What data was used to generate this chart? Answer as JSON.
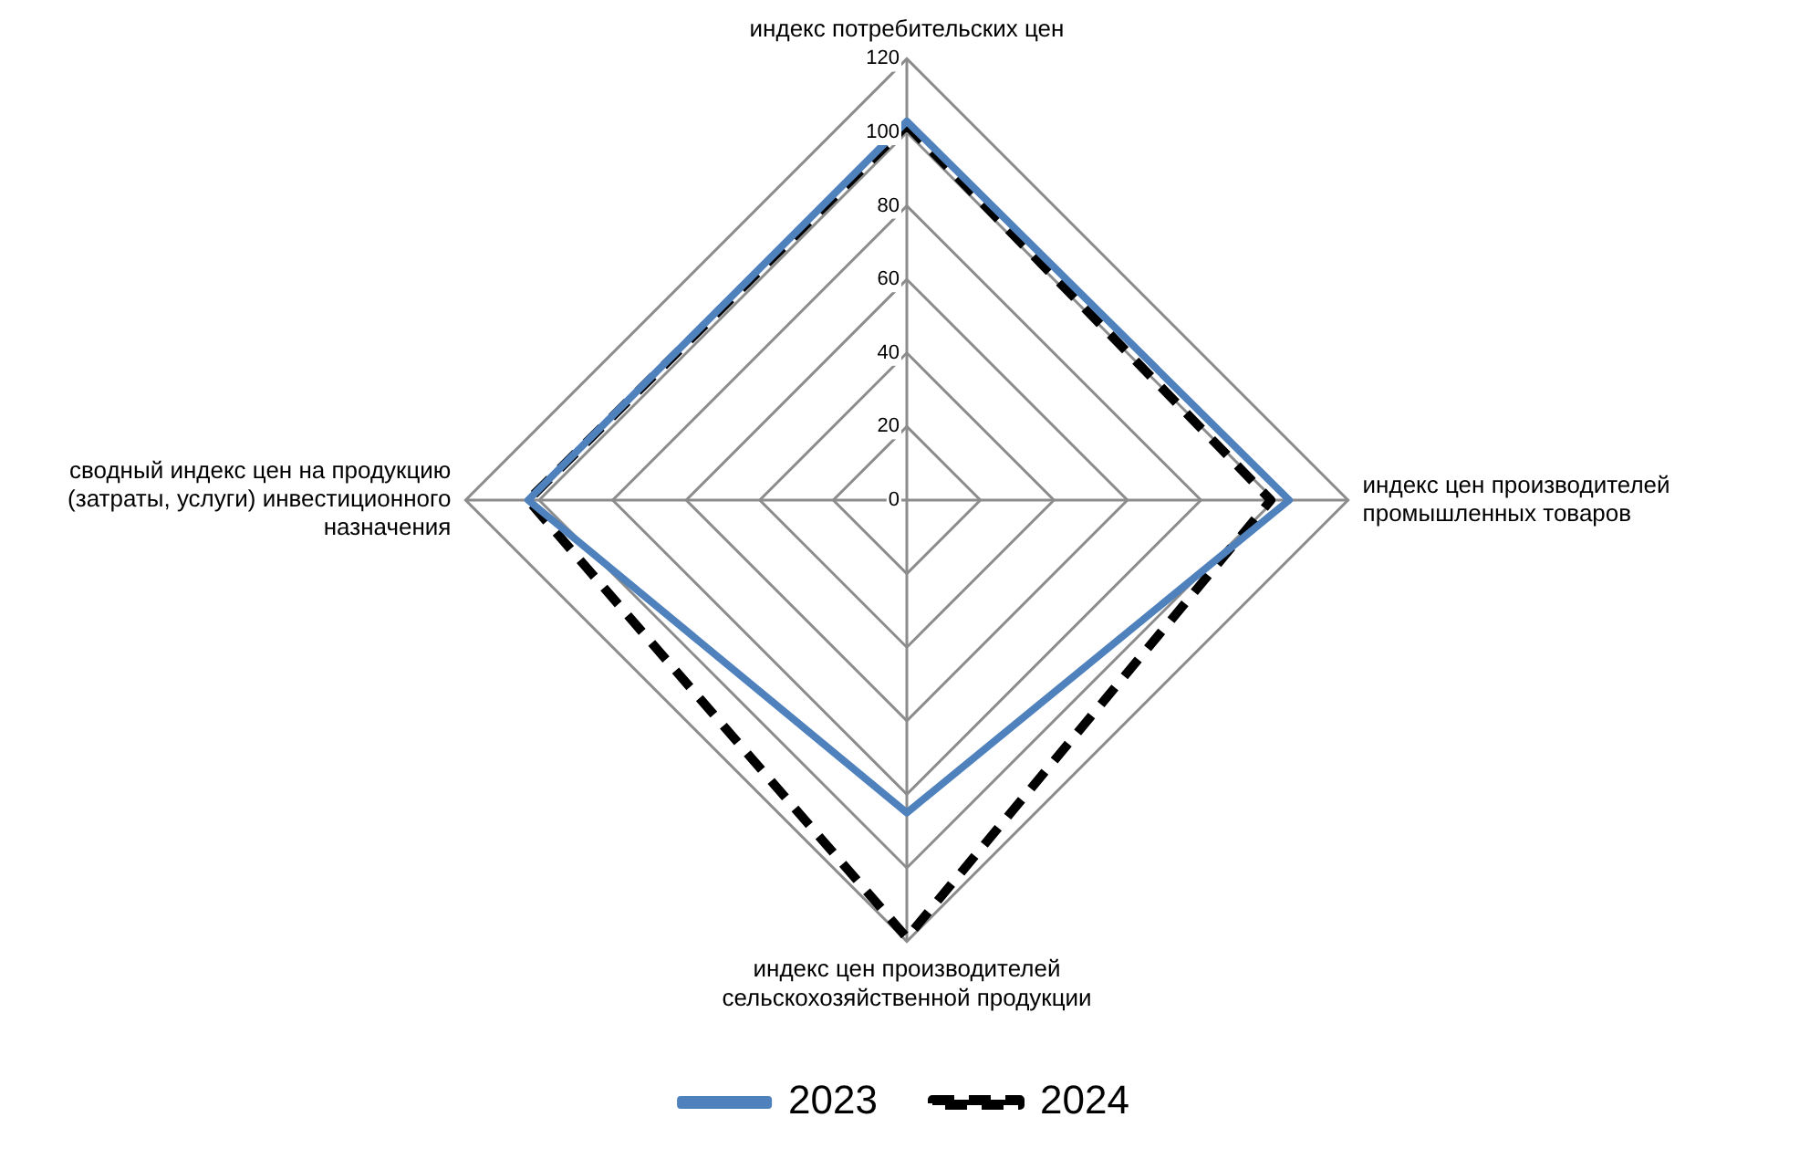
{
  "chart_data": {
    "type": "radar",
    "categories": [
      "индекс потребительских цен",
      "индекс цен производителей промышленных товаров",
      "индекс цен производителей сельскохозяйственной продукции",
      "сводный индекс цен на продукцию (затраты, услуги) инвестиционного назначения"
    ],
    "series": [
      {
        "name": "2023",
        "color": "#4f81bd",
        "values": [
          103,
          104,
          85,
          103
        ],
        "line_style": "solid"
      },
      {
        "name": "2024",
        "color": "#000000",
        "values": [
          102,
          99,
          119,
          103
        ],
        "line_style": "dashed"
      }
    ],
    "ylim": [
      0,
      120
    ],
    "yticks": [
      0,
      20,
      40,
      60,
      80,
      100,
      120
    ],
    "grid": true,
    "legend": "bottom",
    "marker": "none"
  }
}
